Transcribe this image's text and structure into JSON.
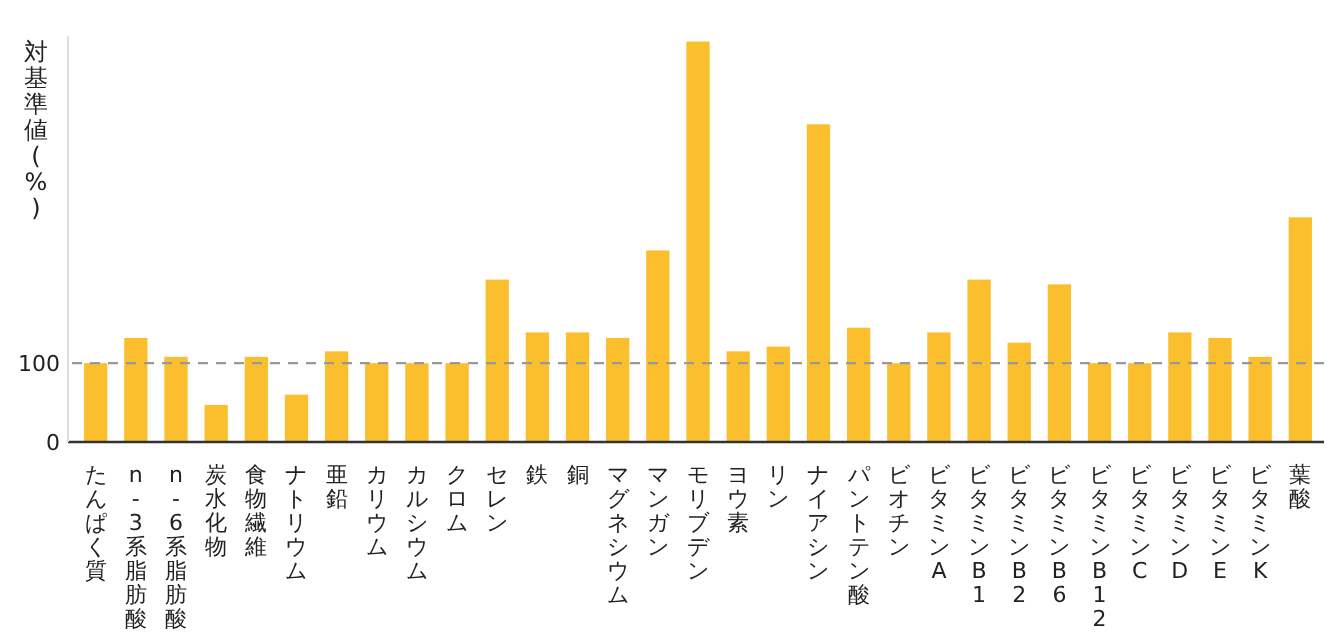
{
  "chart_data": {
    "type": "bar",
    "ylabel": "対基準値(%)",
    "categories": [
      "たんぱく質",
      "n-3系脂肪酸",
      "n-6系脂肪酸",
      "炭水化物",
      "食物繊維",
      "ナトリウム",
      "亜鉛",
      "カリウム",
      "カルシウム",
      "クロム",
      "セレン",
      "鉄",
      "銅",
      "マグネシウム",
      "マンガン",
      "モリブデン",
      "ヨウ素",
      "リン",
      "ナイアシン",
      "パントテン酸",
      "ビオチン",
      "ビタミンA",
      "ビタミンB1",
      "ビタミンB2",
      "ビタミンB6",
      "ビタミンB12",
      "ビタミンC",
      "ビタミンD",
      "ビタミンE",
      "ビタミンK",
      "葉酸"
    ],
    "values": [
      100,
      132,
      108,
      47,
      108,
      60,
      115,
      100,
      100,
      100,
      206,
      139,
      139,
      132,
      243,
      508,
      115,
      121,
      403,
      145,
      100,
      139,
      206,
      126,
      200,
      100,
      100,
      139,
      132,
      108,
      285
    ],
    "color": "#fbbf2e",
    "ylim": [
      0,
      515
    ],
    "yticks": [
      0,
      100
    ],
    "ref_lines": [
      {
        "axis": "y",
        "value": 100,
        "color": "#999999",
        "line_style": "dashed"
      }
    ]
  }
}
